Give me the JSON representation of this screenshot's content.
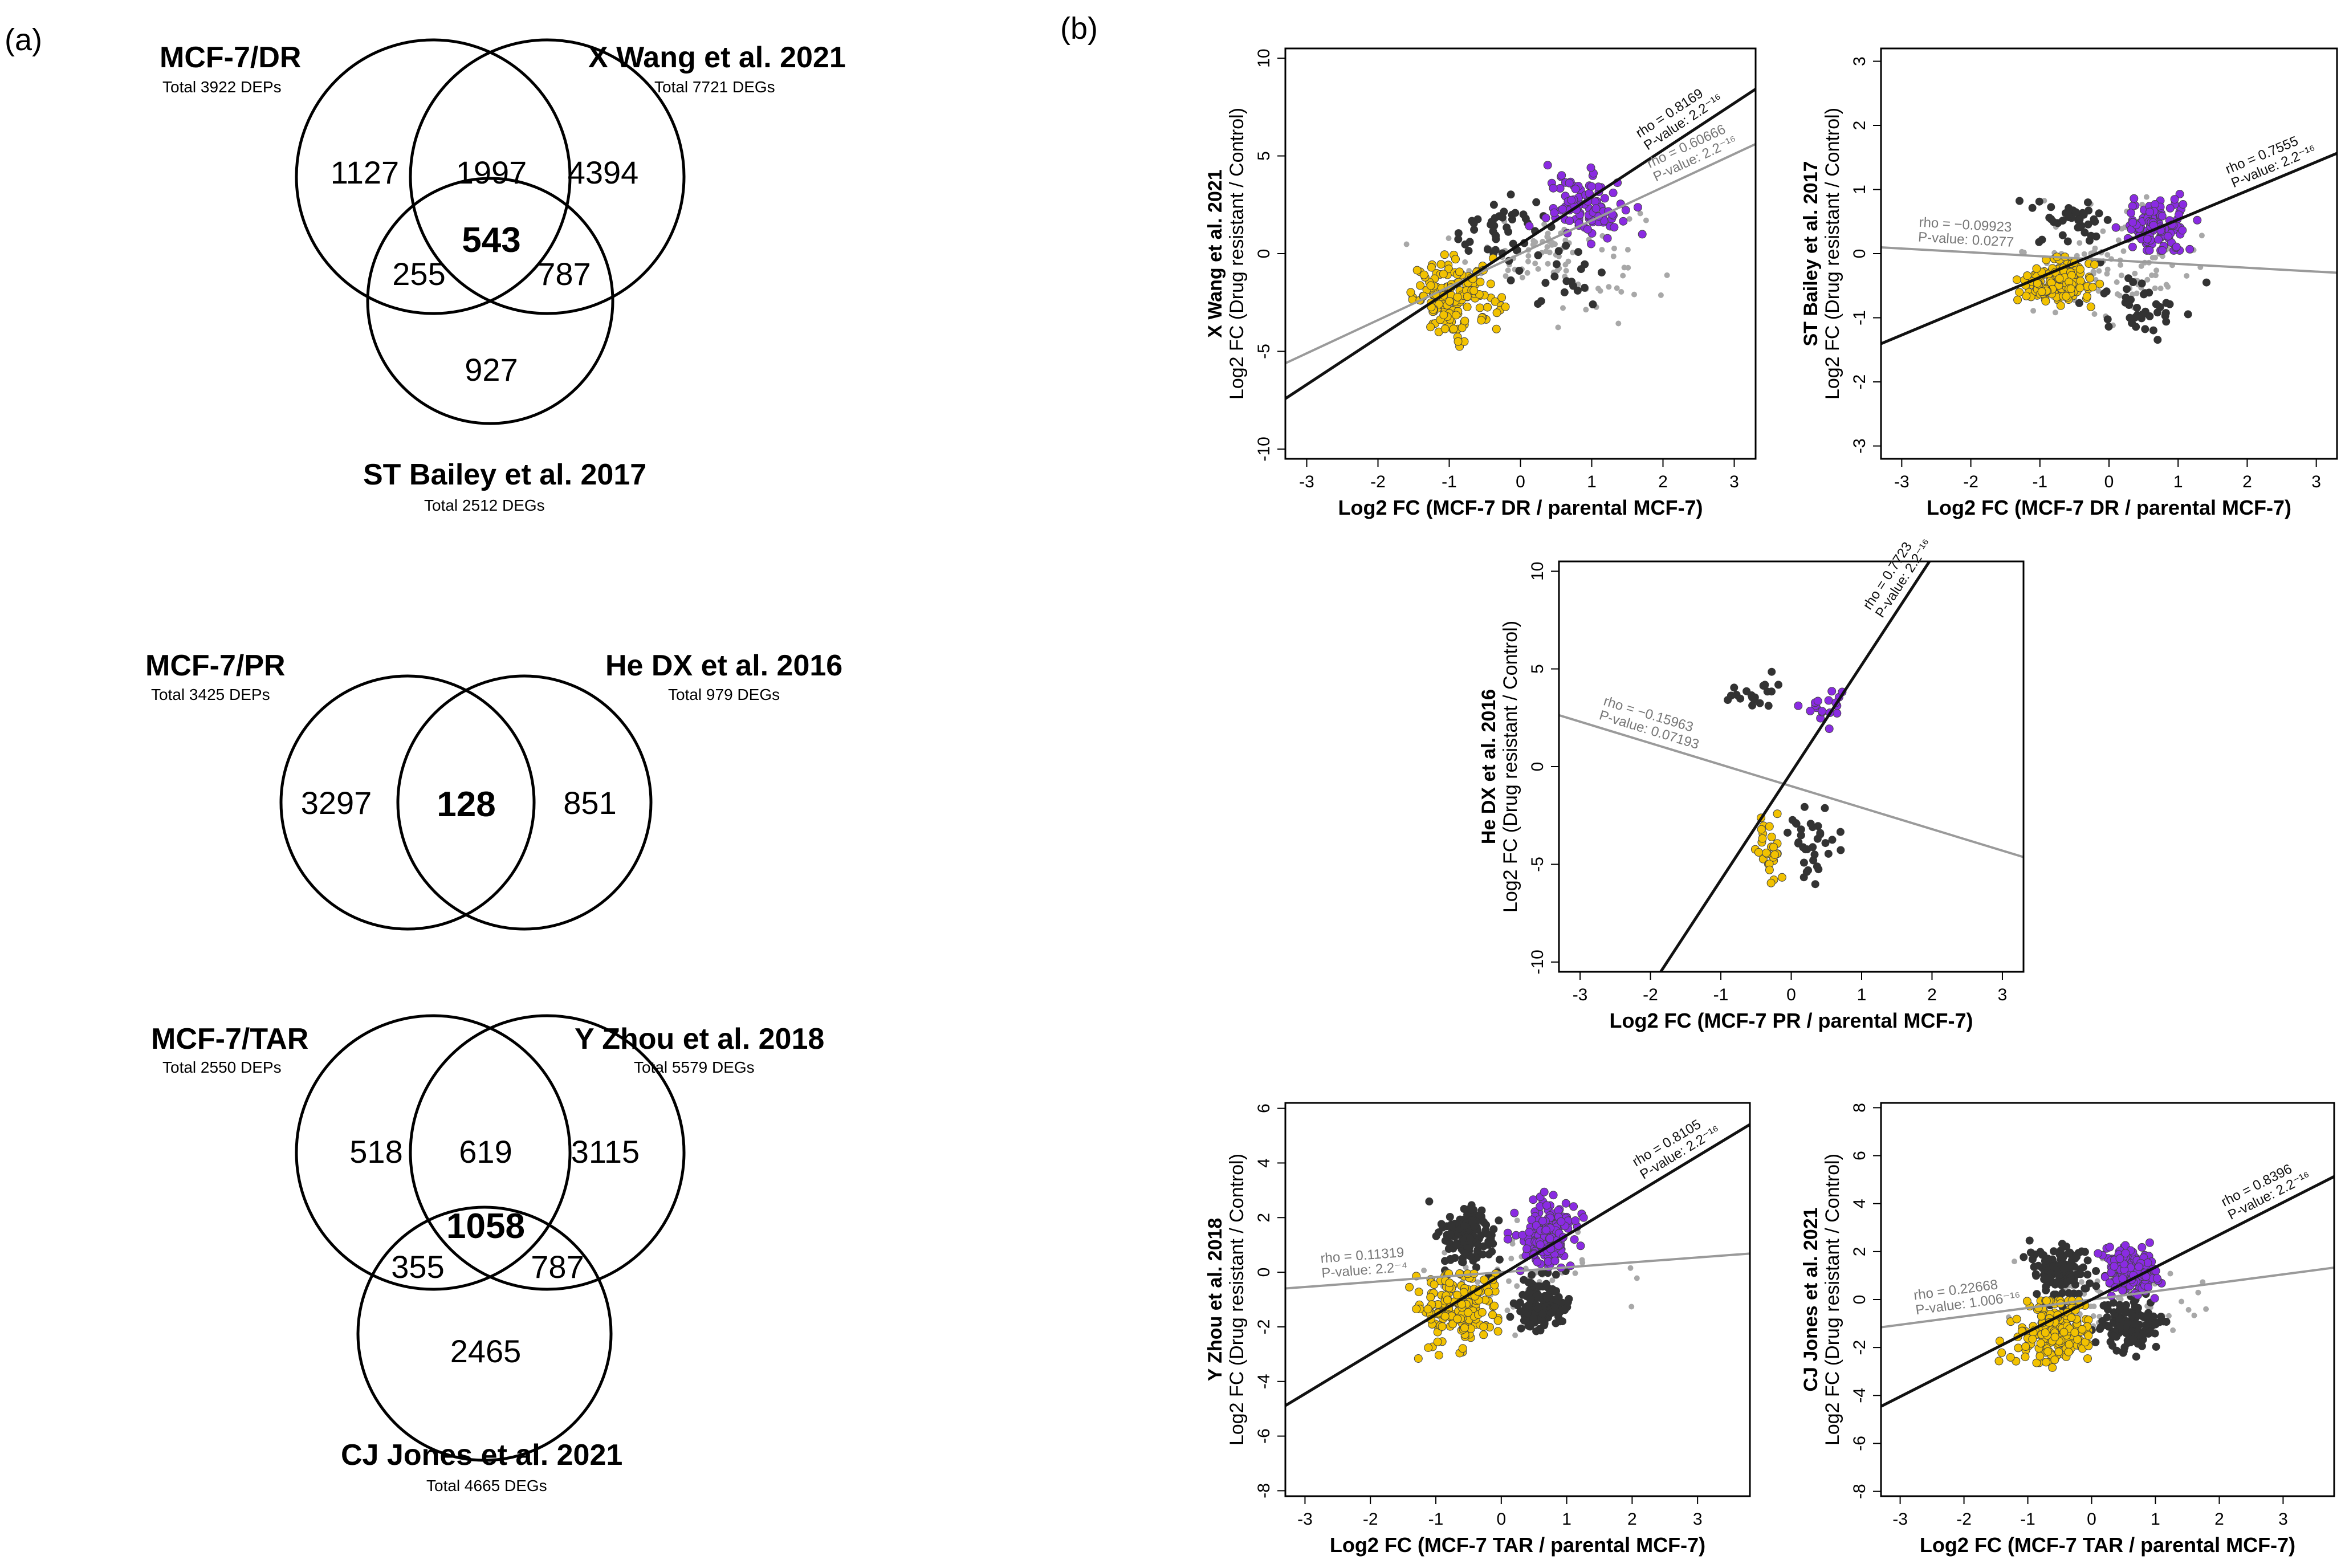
{
  "panel_labels": {
    "a": "(a)",
    "b": "(b)"
  },
  "venn": [
    {
      "sets": [
        {
          "name": "MCF-7/DR",
          "total": "Total 3922 DEPs"
        },
        {
          "name": "X Wang et al. 2021",
          "total": "Total 7721 DEGs"
        },
        {
          "name": "ST Bailey et al. 2017",
          "total": "Total 2512 DEGs"
        }
      ],
      "regions": {
        "a_only": "1127",
        "ab": "1997",
        "b_only": "4394",
        "abc": "543",
        "ac": "255",
        "bc": "787",
        "c_only": "927"
      }
    },
    {
      "sets": [
        {
          "name": "MCF-7/PR",
          "total": "Total 3425 DEPs"
        },
        {
          "name": "He DX et al. 2016",
          "total": "Total 979 DEGs"
        }
      ],
      "regions": {
        "a_only": "3297",
        "ab": "128",
        "b_only": "851"
      }
    },
    {
      "sets": [
        {
          "name": "MCF-7/TAR",
          "total": "Total 2550 DEPs"
        },
        {
          "name": "Y Zhou et al. 2018",
          "total": "Total 5579 DEGs"
        },
        {
          "name": "CJ Jones et al. 2021",
          "total": "Total 4665 DEGs"
        }
      ],
      "regions": {
        "a_only": "518",
        "ab": "619",
        "b_only": "3115",
        "abc": "1058",
        "ac": "355",
        "bc": "787",
        "c_only": "2465"
      }
    }
  ],
  "colors": {
    "purple": "#8a2be2",
    "yellow": "#f2c200",
    "dark": "#333333",
    "grey": "#a8a8a8",
    "black_line": "#111111",
    "grey_line": "#9a9a9a"
  },
  "chart_data": [
    {
      "type": "scatter",
      "id": "wang",
      "ylabel_bold": "X Wang et al. 2021",
      "ylabel": "Log2 FC (Drug resistant / Control)",
      "xlabel": "Log2 FC (MCF-7 DR / parental MCF-7)",
      "xlim": [
        -3.3,
        3.3
      ],
      "ylim": [
        -10.5,
        10.5
      ],
      "xticks": [
        -3,
        -2,
        -1,
        0,
        1,
        2,
        3
      ],
      "yticks": [
        -10,
        -5,
        0,
        5,
        10
      ],
      "fit_black": {
        "slope": 2.4,
        "intercept": 0.5,
        "rho": "rho = 0.8169",
        "p": "P-value: 2.2⁻¹⁶"
      },
      "fit_grey": {
        "slope": 1.7,
        "intercept": 0.0,
        "rho": "rho = 0.60666",
        "p": "P-value: 2.2⁻¹⁶"
      },
      "clusters": [
        {
          "color": "purple",
          "cx": 0.9,
          "cy": 2.4,
          "sx": 0.45,
          "sy": 1.3,
          "n": 95
        },
        {
          "color": "yellow",
          "cx": -0.9,
          "cy": -2.3,
          "sx": 0.5,
          "sy": 1.6,
          "n": 150
        },
        {
          "color": "dark",
          "cx": -0.3,
          "cy": 1.2,
          "sx": 0.6,
          "sy": 1.4,
          "n": 45
        },
        {
          "color": "dark",
          "cx": 0.6,
          "cy": -1.2,
          "sx": 0.5,
          "sy": 1.2,
          "n": 20
        },
        {
          "color": "grey",
          "cx": 0.5,
          "cy": 0.0,
          "sx": 1.0,
          "sy": 2.2,
          "n": 90
        }
      ]
    },
    {
      "type": "scatter",
      "id": "bailey",
      "ylabel_bold": "ST Bailey et al. 2017",
      "ylabel": "Log2 FC (Drug resistant / Control)",
      "xlabel": "Log2 FC (MCF-7 DR / parental MCF-7)",
      "xlim": [
        -3.3,
        3.3
      ],
      "ylim": [
        -3.2,
        3.2
      ],
      "xticks": [
        -3,
        -2,
        -1,
        0,
        1,
        2,
        3
      ],
      "yticks": [
        -3,
        -2,
        -1,
        0,
        1,
        2,
        3
      ],
      "fit_black": {
        "slope": 0.45,
        "intercept": 0.08,
        "rho": "rho = 0.7555",
        "p": "P-value: 2.2⁻¹⁶"
      },
      "fit_grey": {
        "slope": -0.06,
        "intercept": -0.1,
        "rho": "rho = −0.09923",
        "p": "P-value: 0.0277"
      },
      "clusters": [
        {
          "color": "purple",
          "cx": 0.7,
          "cy": 0.4,
          "sx": 0.4,
          "sy": 0.35,
          "n": 110
        },
        {
          "color": "yellow",
          "cx": -0.8,
          "cy": -0.45,
          "sx": 0.45,
          "sy": 0.3,
          "n": 160
        },
        {
          "color": "dark",
          "cx": -0.5,
          "cy": 0.5,
          "sx": 0.5,
          "sy": 0.3,
          "n": 40
        },
        {
          "color": "dark",
          "cx": 0.5,
          "cy": -0.8,
          "sx": 0.5,
          "sy": 0.35,
          "n": 40
        },
        {
          "color": "grey",
          "cx": 0.2,
          "cy": -0.1,
          "sx": 1.0,
          "sy": 0.7,
          "n": 110
        }
      ]
    },
    {
      "type": "scatter",
      "id": "hedx",
      "ylabel_bold": "He DX et al. 2016",
      "ylabel": "Log2 FC (Drug resistant / Control)",
      "xlabel": "Log2 FC (MCF-7 PR / parental MCF-7)",
      "xlim": [
        -3.3,
        3.3
      ],
      "ylim": [
        -10.5,
        10.5
      ],
      "xticks": [
        -3,
        -2,
        -1,
        0,
        1,
        2,
        3
      ],
      "yticks": [
        -10,
        -5,
        0,
        5,
        10
      ],
      "fit_black": {
        "slope": 5.5,
        "intercept": -0.3,
        "rho": "rho = 0.7723",
        "p": "P-value: 2.2⁻¹⁶"
      },
      "fit_grey": {
        "slope": -1.1,
        "intercept": -1.0,
        "rho": "rho = −0.15963",
        "p": "P-value: 0.07193"
      },
      "clusters": [
        {
          "color": "purple",
          "cx": 0.5,
          "cy": 3.1,
          "sx": 0.25,
          "sy": 0.6,
          "n": 18
        },
        {
          "color": "yellow",
          "cx": -0.3,
          "cy": -4.5,
          "sx": 0.15,
          "sy": 1.7,
          "n": 28
        },
        {
          "color": "dark",
          "cx": -0.5,
          "cy": 3.8,
          "sx": 0.4,
          "sy": 0.9,
          "n": 20
        },
        {
          "color": "dark",
          "cx": 0.3,
          "cy": -3.8,
          "sx": 0.3,
          "sy": 1.5,
          "n": 35
        }
      ]
    },
    {
      "type": "scatter",
      "id": "zhou",
      "ylabel_bold": "Y Zhou et al. 2018",
      "ylabel": "Log2 FC (Drug resistant / Control)",
      "xlabel": "Log2 FC (MCF-7 TAR / parental MCF-7)",
      "xlim": [
        -3.3,
        3.8
      ],
      "ylim": [
        -8.2,
        6.2
      ],
      "xticks": [
        -3,
        -2,
        -1,
        0,
        1,
        2,
        3
      ],
      "yticks": [
        -8,
        -6,
        -4,
        -2,
        0,
        2,
        4,
        6
      ],
      "fit_black": {
        "slope": 1.45,
        "intercept": -0.1,
        "rho": "rho = 0.8105",
        "p": "P-value: 2.2⁻¹⁶"
      },
      "fit_grey": {
        "slope": 0.18,
        "intercept": 0.0,
        "rho": "rho = 0.11319",
        "p": "P-value: 2.2⁻⁴"
      },
      "clusters": [
        {
          "color": "purple",
          "cx": 0.7,
          "cy": 1.4,
          "sx": 0.35,
          "sy": 0.9,
          "n": 180
        },
        {
          "color": "yellow",
          "cx": -0.7,
          "cy": -1.3,
          "sx": 0.5,
          "sy": 1.3,
          "n": 180
        },
        {
          "color": "dark",
          "cx": -0.5,
          "cy": 1.3,
          "sx": 0.35,
          "sy": 1.0,
          "n": 140
        },
        {
          "color": "dark",
          "cx": 0.6,
          "cy": -1.1,
          "sx": 0.35,
          "sy": 0.9,
          "n": 140
        },
        {
          "color": "grey",
          "cx": 0.3,
          "cy": 0.0,
          "sx": 1.2,
          "sy": 1.5,
          "n": 60
        }
      ]
    },
    {
      "type": "scatter",
      "id": "jones",
      "ylabel_bold": "CJ Jones et al. 2021",
      "ylabel": "Log2 FC (Drug resistant / Control)",
      "xlabel": "Log2 FC (MCF-7 TAR / parental MCF-7)",
      "xlim": [
        -3.3,
        3.8
      ],
      "ylim": [
        -8.2,
        8.2
      ],
      "xticks": [
        -3,
        -2,
        -1,
        0,
        1,
        2,
        3
      ],
      "yticks": [
        -8,
        -6,
        -4,
        -2,
        0,
        2,
        4,
        6,
        8
      ],
      "fit_black": {
        "slope": 1.35,
        "intercept": 0.0,
        "rho": "rho = 0.8396",
        "p": "P-value: 2.2⁻¹⁶"
      },
      "fit_grey": {
        "slope": 0.35,
        "intercept": 0.0,
        "rho": "rho = 0.22668",
        "p": "P-value: 1.006⁻¹⁶"
      },
      "clusters": [
        {
          "color": "purple",
          "cx": 0.6,
          "cy": 1.3,
          "sx": 0.35,
          "sy": 0.8,
          "n": 180
        },
        {
          "color": "yellow",
          "cx": -0.6,
          "cy": -1.3,
          "sx": 0.5,
          "sy": 1.2,
          "n": 180
        },
        {
          "color": "dark",
          "cx": -0.5,
          "cy": 1.2,
          "sx": 0.35,
          "sy": 0.9,
          "n": 130
        },
        {
          "color": "dark",
          "cx": 0.6,
          "cy": -1.0,
          "sx": 0.4,
          "sy": 0.9,
          "n": 130
        },
        {
          "color": "grey",
          "cx": 0.3,
          "cy": 0.0,
          "sx": 1.2,
          "sy": 1.4,
          "n": 60
        }
      ]
    }
  ]
}
